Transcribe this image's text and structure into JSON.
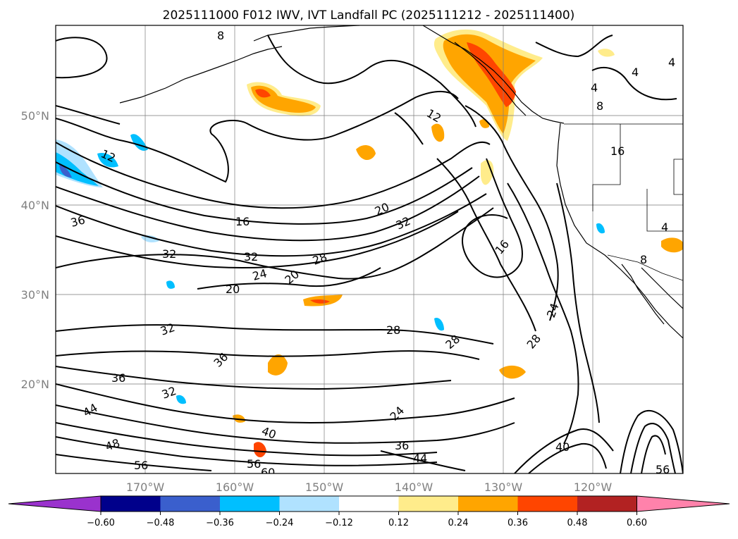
{
  "title": "2025111000 F012 IWV, IVT Landfall PC (2025111212 - 2025111400)",
  "lat_labels": [
    "50°N",
    "40°N",
    "30°N",
    "20°N"
  ],
  "lon_labels": [
    "170°W",
    "160°W",
    "150°W",
    "140°W",
    "130°W",
    "120°W"
  ],
  "colorbar": {
    "ticks": [
      "−0.60",
      "−0.48",
      "−0.36",
      "−0.24",
      "−0.12",
      "0.12",
      "0.24",
      "0.36",
      "0.48",
      "0.60"
    ],
    "colors": [
      "#9a32cd",
      "#00008b",
      "#3a5fcd",
      "#00bfff",
      "#b0e2ff",
      "#ffffff",
      "#ffec8b",
      "#ffa500",
      "#ff4500",
      "#b22222",
      "#ff82ab"
    ]
  },
  "contour_labels": [
    "8",
    "12",
    "12",
    "16",
    "16",
    "16",
    "20",
    "20",
    "20",
    "24",
    "24",
    "24",
    "28",
    "28",
    "28",
    "28",
    "32",
    "32",
    "32",
    "32",
    "32",
    "36",
    "36",
    "36",
    "36",
    "40",
    "40",
    "44",
    "44",
    "48",
    "56",
    "56",
    "56",
    "60",
    "4",
    "4",
    "4",
    "8",
    "8",
    "4"
  ]
}
